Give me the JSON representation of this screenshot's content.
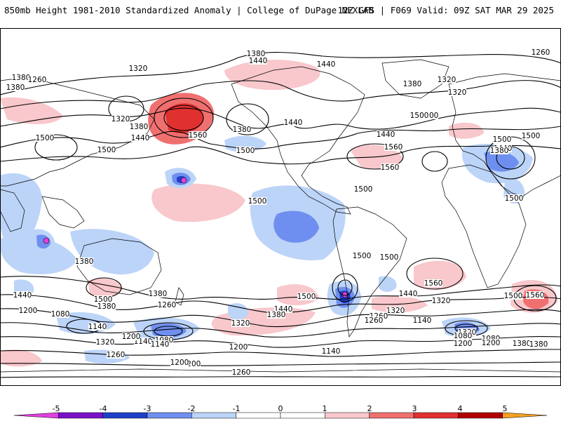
{
  "header": {
    "title_left": "850mb Height 1981-2010 Standardized Anomaly | College of DuPage NEXLAB",
    "title_right": "12Z GFS | F069 Valid: 09Z SAT MAR 29 2025"
  },
  "colors": {
    "anom_m5": "#e040e0",
    "anom_m4": "#7a10c8",
    "anom_m3": "#1f3fc8",
    "anom_m2": "#6f8ff0",
    "anom_m1": "#bcd4f8",
    "anom_p1": "#f8c8cc",
    "anom_p2": "#f07070",
    "anom_p3": "#e03030",
    "anom_p4": "#b00000",
    "anom_p5": "#f4a020",
    "contour": "#000000",
    "coastline": "#000000"
  },
  "colorbar": {
    "ticks": [
      "-5",
      "-4",
      "-3",
      "-2",
      "-1",
      "0",
      "1",
      "2",
      "3",
      "4",
      "5"
    ]
  },
  "contour_labels": [
    "1380",
    "1440",
    "1320",
    "1260",
    "1380",
    "1260",
    "1440",
    "1320",
    "1380",
    "1320",
    "1380",
    "1500",
    "1440",
    "1320",
    "1380",
    "1500",
    "1440",
    "1560",
    "1380",
    "1500",
    "1440",
    "1500",
    "1560",
    "1560",
    "1500",
    "1440",
    "1380",
    "1500",
    "1500",
    "1500",
    "1500",
    "1500",
    "1500",
    "1560",
    "1500",
    "1380",
    "1320",
    "1440",
    "1500",
    "1500",
    "1440",
    "1380",
    "1500",
    "1260",
    "1440",
    "1560",
    "1320",
    "1380",
    "1380",
    "1200",
    "1080",
    "1140",
    "1320",
    "1200",
    "1080",
    "1140",
    "1260",
    "1140",
    "1200",
    "1080",
    "1140",
    "1320",
    "1200",
    "1260",
    "1260",
    "1200",
    "1140",
    "1200",
    "1380",
    "1200",
    "1260",
    "1320",
    "1380",
    "1080"
  ]
}
